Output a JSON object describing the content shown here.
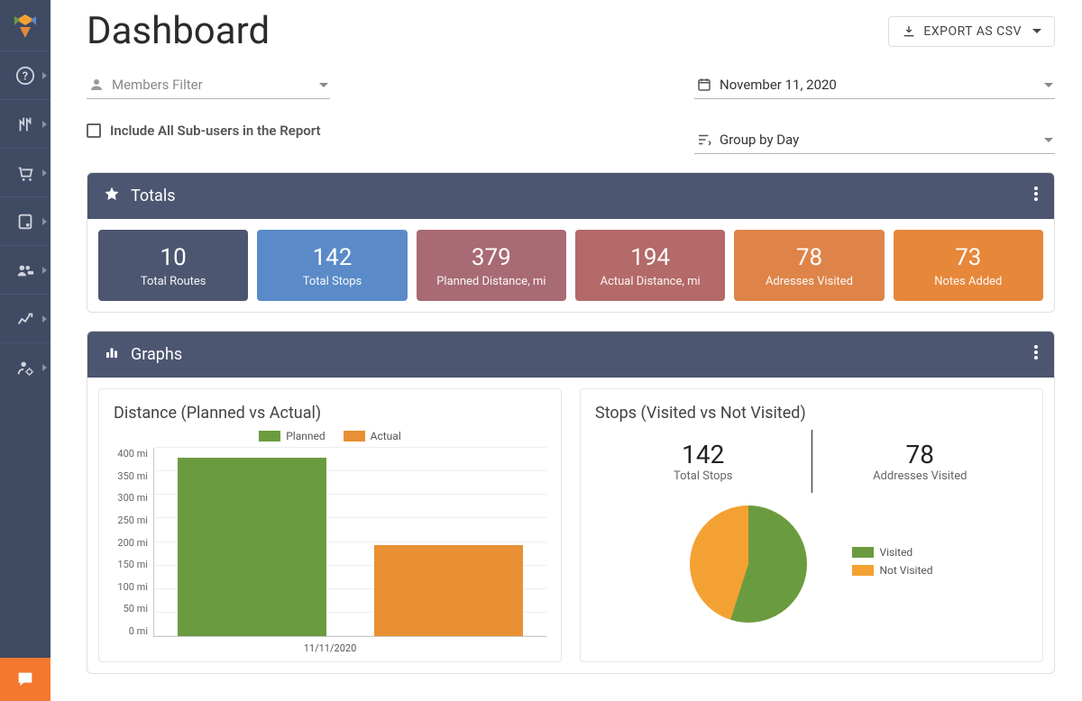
{
  "page": {
    "title": "Dashboard",
    "export_label": "EXPORT AS CSV"
  },
  "filters": {
    "members_placeholder": "Members Filter",
    "include_subusers_label": "Include All Sub-users in the Report",
    "date_value": "November 11, 2020",
    "group_by_value": "Group by Day"
  },
  "totals_panel": {
    "title": "Totals",
    "cards": [
      {
        "value": "10",
        "label": "Total Routes",
        "bg": "#4c5670"
      },
      {
        "value": "142",
        "label": "Total Stops",
        "bg": "#5a8bc8"
      },
      {
        "value": "379",
        "label": "Planned Distance, mi",
        "bg": "#a86a74"
      },
      {
        "value": "194",
        "label": "Actual Distance, mi",
        "bg": "#b36a68"
      },
      {
        "value": "78",
        "label": "Adresses Visited",
        "bg": "#de8449"
      },
      {
        "value": "73",
        "label": "Notes Added",
        "bg": "#e6873a"
      }
    ]
  },
  "graphs_panel": {
    "title": "Graphs",
    "bar_chart": {
      "title": "Distance (Planned vs Actual)",
      "legend_planned": "Planned",
      "legend_actual": "Actual",
      "ylim_max": 400,
      "ytick_step": 50,
      "y_unit": "mi",
      "x_label": "11/11/2020",
      "series": [
        {
          "name": "Planned",
          "value": 379,
          "color": "#6b9b3f"
        },
        {
          "name": "Actual",
          "value": 194,
          "color": "#e89033"
        }
      ],
      "grid_color": "#eeeeee",
      "axis_color": "#cccccc"
    },
    "pie_chart": {
      "title": "Stops (Visited vs Not Visited)",
      "stat_total_stops_value": "142",
      "stat_total_stops_label": "Total Stops",
      "stat_visited_value": "78",
      "stat_visited_label": "Addresses Visited",
      "legend_visited": "Visited",
      "legend_not_visited": "Not Visited",
      "slices": [
        {
          "name": "Visited",
          "value": 78,
          "color": "#6b9b3f"
        },
        {
          "name": "Not Visited",
          "value": 64,
          "color": "#f4a133"
        }
      ]
    }
  },
  "colors": {
    "sidebar_bg": "#3f4a63",
    "panel_header_bg": "#4c5670",
    "chat_bg": "#f4782e"
  }
}
